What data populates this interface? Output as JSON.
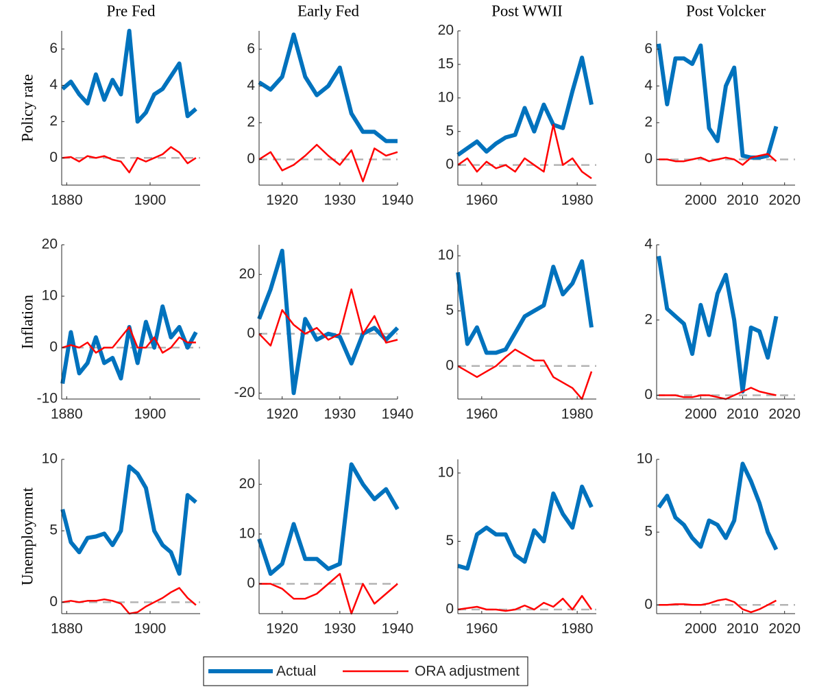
{
  "legend": [
    {
      "name": "Actual",
      "color": "#0072bd"
    },
    {
      "name": "ORA adjustment",
      "color": "#ff0000"
    }
  ],
  "chart_data": [
    {
      "type": "line",
      "title": "Pre Fed",
      "ylabel": "Policy rate",
      "zero_line": true,
      "x": [
        1879,
        1881,
        1883,
        1885,
        1887,
        1889,
        1891,
        1893,
        1895,
        1897,
        1899,
        1901,
        1903,
        1905,
        1907,
        1909,
        1911
      ],
      "xlim": [
        1878.8,
        1912
      ],
      "xticks": [
        1880,
        1900
      ],
      "ylim": [
        -1.5,
        7
      ],
      "yticks": [
        0,
        2,
        4,
        6
      ],
      "series": [
        {
          "color": "#0072bd",
          "values": [
            3.8,
            4.2,
            3.5,
            3.0,
            4.6,
            3.2,
            4.3,
            3.5,
            7.0,
            2.0,
            2.5,
            3.5,
            3.8,
            4.5,
            5.2,
            2.3,
            2.7
          ]
        },
        {
          "color": "#ff0000",
          "values": [
            0,
            0.05,
            -0.2,
            0.1,
            0,
            0.1,
            -0.1,
            -0.2,
            -0.8,
            0,
            -0.2,
            0,
            0.2,
            0.6,
            0.3,
            -0.3,
            0
          ]
        }
      ]
    },
    {
      "type": "line",
      "title": "Early Fed",
      "zero_line": true,
      "x": [
        1916,
        1918,
        1920,
        1922,
        1924,
        1926,
        1928,
        1930,
        1932,
        1934,
        1936,
        1938,
        1940
      ],
      "xlim": [
        1916,
        1940
      ],
      "xticks": [
        1920,
        1930,
        1940
      ],
      "ylim": [
        -1.4,
        7
      ],
      "yticks": [
        0,
        2,
        4,
        6
      ],
      "series": [
        {
          "color": "#0072bd",
          "values": [
            4.2,
            3.8,
            4.5,
            6.8,
            4.5,
            3.5,
            4.0,
            5.0,
            2.5,
            1.5,
            1.5,
            1.0,
            1.0
          ]
        },
        {
          "color": "#ff0000",
          "values": [
            0,
            0.4,
            -0.6,
            -0.3,
            0.2,
            0.8,
            0.2,
            -0.3,
            0.5,
            -1.2,
            0.6,
            0.2,
            0.4
          ]
        }
      ]
    },
    {
      "type": "line",
      "title": "Post WWII",
      "zero_line": true,
      "x": [
        1955,
        1957,
        1959,
        1961,
        1963,
        1965,
        1967,
        1969,
        1971,
        1973,
        1975,
        1977,
        1979,
        1981,
        1983
      ],
      "xlim": [
        1955,
        1984
      ],
      "xticks": [
        1960,
        1980
      ],
      "ylim": [
        -3,
        20
      ],
      "yticks": [
        0,
        5,
        10,
        15,
        20
      ],
      "series": [
        {
          "color": "#0072bd",
          "values": [
            1.5,
            2.5,
            3.5,
            2,
            3.2,
            4.1,
            4.5,
            8.5,
            5,
            9,
            6,
            5.5,
            11,
            16,
            9
          ]
        },
        {
          "color": "#ff0000",
          "values": [
            0,
            1,
            -1,
            0.5,
            -0.5,
            0,
            -1,
            1,
            0,
            -1,
            6,
            0,
            1,
            -1,
            -2
          ]
        }
      ]
    },
    {
      "type": "line",
      "title": "Post Volcker",
      "zero_line": true,
      "x": [
        1990,
        1992,
        1994,
        1996,
        1998,
        2000,
        2002,
        2004,
        2006,
        2008,
        2010,
        2012,
        2014,
        2016,
        2018
      ],
      "xlim": [
        1989.5,
        2022.5
      ],
      "xticks": [
        2000,
        2010,
        2020
      ],
      "ylim": [
        -1.4,
        7
      ],
      "yticks": [
        0,
        2,
        4,
        6
      ],
      "series": [
        {
          "color": "#0072bd",
          "values": [
            6.3,
            3.0,
            5.5,
            5.5,
            5.2,
            6.2,
            1.7,
            1.0,
            4.0,
            5.0,
            0.2,
            0.1,
            0.1,
            0.2,
            1.8
          ]
        },
        {
          "color": "#ff0000",
          "values": [
            0,
            0,
            -0.1,
            -0.1,
            0,
            0.1,
            -0.1,
            0,
            0.1,
            0,
            -0.3,
            0.1,
            0.2,
            0.3,
            -0.1
          ]
        }
      ]
    },
    {
      "type": "line",
      "ylabel": "Inflation",
      "zero_line": true,
      "x": [
        1879,
        1881,
        1883,
        1885,
        1887,
        1889,
        1891,
        1893,
        1895,
        1897,
        1899,
        1901,
        1903,
        1905,
        1907,
        1909,
        1911
      ],
      "xlim": [
        1878.8,
        1912
      ],
      "xticks": [
        1880,
        1900
      ],
      "ylim": [
        -10,
        20
      ],
      "yticks": [
        -10,
        0,
        10,
        20
      ],
      "series": [
        {
          "color": "#0072bd",
          "values": [
            -7,
            3,
            -5,
            -3,
            2,
            -3,
            -2,
            -6,
            4,
            -3,
            5,
            0,
            8,
            2,
            4,
            0,
            3
          ]
        },
        {
          "color": "#ff0000",
          "values": [
            0,
            0.5,
            0,
            1,
            -1,
            0,
            0,
            2,
            4,
            0,
            0,
            2,
            -1,
            0,
            2,
            1,
            1
          ]
        }
      ]
    },
    {
      "type": "line",
      "zero_line": true,
      "x": [
        1916,
        1918,
        1920,
        1922,
        1924,
        1926,
        1928,
        1930,
        1932,
        1934,
        1936,
        1938,
        1940
      ],
      "xlim": [
        1916,
        1940
      ],
      "xticks": [
        1920,
        1930,
        1940
      ],
      "ylim": [
        -22,
        30
      ],
      "yticks": [
        -20,
        0,
        20
      ],
      "series": [
        {
          "color": "#0072bd",
          "values": [
            5,
            15,
            28,
            -20,
            5,
            -2,
            0,
            -1,
            -10,
            0,
            2,
            -2,
            2
          ]
        },
        {
          "color": "#ff0000",
          "values": [
            0,
            -4,
            8,
            3,
            0,
            2,
            -2,
            0,
            15,
            0,
            6,
            -3,
            -2
          ]
        }
      ]
    },
    {
      "type": "line",
      "zero_line": true,
      "x": [
        1955,
        1957,
        1959,
        1961,
        1963,
        1965,
        1967,
        1969,
        1971,
        1973,
        1975,
        1977,
        1979,
        1981,
        1983
      ],
      "xlim": [
        1955,
        1984
      ],
      "xticks": [
        1960,
        1980
      ],
      "ylim": [
        -3,
        11
      ],
      "yticks": [
        0,
        5,
        10
      ],
      "series": [
        {
          "color": "#0072bd",
          "values": [
            8.5,
            2,
            3.5,
            1.2,
            1.2,
            1.5,
            3,
            4.5,
            5,
            5.5,
            9,
            6.5,
            7.5,
            9.5,
            3.5
          ]
        },
        {
          "color": "#ff0000",
          "values": [
            0,
            -0.5,
            -1,
            -0.5,
            0,
            0.8,
            1.5,
            1,
            0.5,
            0.5,
            -1,
            -1.5,
            -2,
            -3,
            -0.5
          ]
        }
      ]
    },
    {
      "type": "line",
      "zero_line": true,
      "x": [
        1990,
        1992,
        1994,
        1996,
        1998,
        2000,
        2002,
        2004,
        2006,
        2008,
        2010,
        2012,
        2014,
        2016,
        2018
      ],
      "xlim": [
        1989.5,
        2022.5
      ],
      "xticks": [
        2000,
        2010,
        2020
      ],
      "ylim": [
        -0.1,
        4
      ],
      "yticks": [
        0,
        2,
        4
      ],
      "series": [
        {
          "color": "#0072bd",
          "values": [
            3.7,
            2.3,
            2.1,
            1.9,
            1.1,
            2.4,
            1.6,
            2.7,
            3.2,
            2.0,
            0.1,
            1.8,
            1.7,
            1.0,
            2.1
          ]
        },
        {
          "color": "#ff0000",
          "values": [
            0,
            0,
            0,
            -0.05,
            -0.05,
            0,
            0,
            -0.05,
            -0.1,
            0,
            0.1,
            0.2,
            0.1,
            0.05,
            0
          ]
        }
      ]
    },
    {
      "type": "line",
      "ylabel": "Unemployment",
      "zero_line": true,
      "x": [
        1879,
        1881,
        1883,
        1885,
        1887,
        1889,
        1891,
        1893,
        1895,
        1897,
        1899,
        1901,
        1903,
        1905,
        1907,
        1909,
        1911
      ],
      "xlim": [
        1878.8,
        1912
      ],
      "xticks": [
        1880,
        1900
      ],
      "ylim": [
        -0.8,
        10
      ],
      "yticks": [
        0,
        5,
        10
      ],
      "series": [
        {
          "color": "#0072bd",
          "values": [
            6.5,
            4.2,
            3.5,
            4.5,
            4.6,
            4.8,
            4.0,
            5.0,
            9.5,
            9.0,
            8.0,
            5.0,
            4.0,
            3.5,
            2.0,
            7.5,
            7.0
          ]
        },
        {
          "color": "#ff0000",
          "values": [
            0,
            0.1,
            0,
            0.1,
            0.1,
            0.2,
            0.1,
            -0.1,
            -0.8,
            -0.7,
            -0.3,
            0,
            0.3,
            0.7,
            1,
            0.3,
            -0.2
          ]
        }
      ]
    },
    {
      "type": "line",
      "zero_line": true,
      "x": [
        1916,
        1918,
        1920,
        1922,
        1924,
        1926,
        1928,
        1930,
        1932,
        1934,
        1936,
        1938,
        1940
      ],
      "xlim": [
        1916,
        1940
      ],
      "xticks": [
        1920,
        1930,
        1940
      ],
      "ylim": [
        -6,
        25
      ],
      "yticks": [
        0,
        10,
        20
      ],
      "series": [
        {
          "color": "#0072bd",
          "values": [
            9,
            2,
            4,
            12,
            5,
            5,
            3,
            4,
            24,
            20,
            17,
            19,
            15
          ]
        },
        {
          "color": "#ff0000",
          "values": [
            0,
            0,
            -1,
            -3,
            -3,
            -2,
            0,
            2,
            -6,
            0,
            -4,
            -2,
            0
          ]
        }
      ]
    },
    {
      "type": "line",
      "zero_line": true,
      "x": [
        1955,
        1957,
        1959,
        1961,
        1963,
        1965,
        1967,
        1969,
        1971,
        1973,
        1975,
        1977,
        1979,
        1981,
        1983
      ],
      "xlim": [
        1955,
        1984
      ],
      "xticks": [
        1960,
        1980
      ],
      "ylim": [
        -0.3,
        11
      ],
      "yticks": [
        0,
        5,
        10
      ],
      "series": [
        {
          "color": "#0072bd",
          "values": [
            3.2,
            3,
            5.5,
            6,
            5.5,
            5.5,
            4,
            3.5,
            5.8,
            5,
            8.5,
            7,
            6,
            9,
            7.5
          ]
        },
        {
          "color": "#ff0000",
          "values": [
            0,
            0.1,
            0.2,
            0,
            0,
            -0.1,
            0,
            0.3,
            0,
            0.5,
            0.2,
            0.8,
            0,
            1,
            0
          ]
        }
      ]
    },
    {
      "type": "line",
      "zero_line": true,
      "x": [
        1990,
        1992,
        1994,
        1996,
        1998,
        2000,
        2002,
        2004,
        2006,
        2008,
        2010,
        2012,
        2014,
        2016,
        2018
      ],
      "xlim": [
        1989.5,
        2022.5
      ],
      "xticks": [
        2000,
        2010,
        2020
      ],
      "ylim": [
        -0.6,
        10
      ],
      "yticks": [
        0,
        5,
        10
      ],
      "series": [
        {
          "color": "#0072bd",
          "values": [
            6.7,
            7.5,
            6,
            5.5,
            4.6,
            4.0,
            5.8,
            5.5,
            4.6,
            5.8,
            9.7,
            8.5,
            7,
            5,
            3.8
          ]
        },
        {
          "color": "#ff0000",
          "values": [
            0,
            0,
            0.05,
            0.05,
            0,
            0,
            0.1,
            0.3,
            0.4,
            0.2,
            -0.3,
            -0.5,
            -0.3,
            0,
            0.3
          ]
        }
      ]
    }
  ]
}
